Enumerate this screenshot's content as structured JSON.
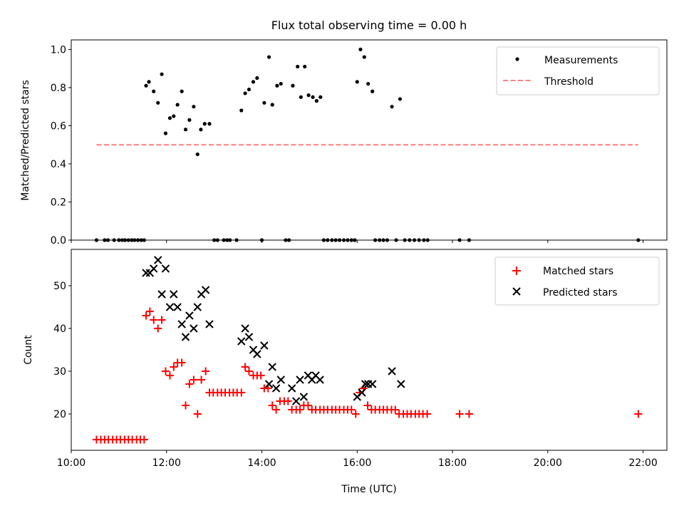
{
  "figure": {
    "title": "Flux total observing time = 0.00 h"
  },
  "chart_data": [
    {
      "type": "scatter",
      "ylabel": "Matched/Predicted stars",
      "xlim": [
        10.0,
        22.5
      ],
      "ylim": [
        0.0,
        1.05
      ],
      "yticks": [
        "0.0",
        "0.2",
        "0.4",
        "0.6",
        "0.8",
        "1.0"
      ],
      "ytick_values": [
        0.0,
        0.2,
        0.4,
        0.6,
        0.8,
        1.0
      ],
      "grid": false,
      "legend_position": "top-right",
      "series": [
        {
          "name": "Measurements",
          "color": "#000000",
          "marker": "dot",
          "points": [
            [
              10.53,
              0
            ],
            [
              10.7,
              0
            ],
            [
              10.77,
              0
            ],
            [
              10.9,
              0
            ],
            [
              11.0,
              0
            ],
            [
              11.07,
              0
            ],
            [
              11.13,
              0
            ],
            [
              11.2,
              0
            ],
            [
              11.27,
              0
            ],
            [
              11.33,
              0
            ],
            [
              11.4,
              0
            ],
            [
              11.47,
              0
            ],
            [
              11.53,
              0
            ],
            [
              11.57,
              0.81
            ],
            [
              11.63,
              0.83
            ],
            [
              11.73,
              0.78
            ],
            [
              11.82,
              0.72
            ],
            [
              11.9,
              0.87
            ],
            [
              11.98,
              0.56
            ],
            [
              12.07,
              0.64
            ],
            [
              12.15,
              0.65
            ],
            [
              12.23,
              0.71
            ],
            [
              12.32,
              0.78
            ],
            [
              12.4,
              0.58
            ],
            [
              12.48,
              0.63
            ],
            [
              12.57,
              0.7
            ],
            [
              12.65,
              0.45
            ],
            [
              12.72,
              0.58
            ],
            [
              12.8,
              0.61
            ],
            [
              12.9,
              0.61
            ],
            [
              13.0,
              0
            ],
            [
              13.07,
              0
            ],
            [
              13.2,
              0
            ],
            [
              13.27,
              0
            ],
            [
              13.33,
              0
            ],
            [
              13.47,
              0
            ],
            [
              13.57,
              0.68
            ],
            [
              13.65,
              0.77
            ],
            [
              13.73,
              0.79
            ],
            [
              13.82,
              0.83
            ],
            [
              13.9,
              0.85
            ],
            [
              14.0,
              0
            ],
            [
              14.05,
              0.72
            ],
            [
              14.15,
              0.96
            ],
            [
              14.22,
              0.71
            ],
            [
              14.32,
              0.81
            ],
            [
              14.4,
              0.82
            ],
            [
              14.5,
              0
            ],
            [
              14.57,
              0
            ],
            [
              14.65,
              0.81
            ],
            [
              14.75,
              0.91
            ],
            [
              14.82,
              0.75
            ],
            [
              14.9,
              0.91
            ],
            [
              14.98,
              0.76
            ],
            [
              15.07,
              0.75
            ],
            [
              15.15,
              0.73
            ],
            [
              15.23,
              0.75
            ],
            [
              15.3,
              0
            ],
            [
              15.38,
              0
            ],
            [
              15.47,
              0
            ],
            [
              15.55,
              0
            ],
            [
              15.63,
              0
            ],
            [
              15.72,
              0
            ],
            [
              15.8,
              0
            ],
            [
              15.88,
              0
            ],
            [
              15.95,
              0
            ],
            [
              16.0,
              0.83
            ],
            [
              16.07,
              1.0
            ],
            [
              16.15,
              0.96
            ],
            [
              16.23,
              0.82
            ],
            [
              16.32,
              0.78
            ],
            [
              16.38,
              0
            ],
            [
              16.47,
              0
            ],
            [
              16.55,
              0
            ],
            [
              16.63,
              0
            ],
            [
              16.73,
              0.7
            ],
            [
              16.82,
              0
            ],
            [
              16.9,
              0.74
            ],
            [
              17.0,
              0
            ],
            [
              17.1,
              0
            ],
            [
              17.2,
              0
            ],
            [
              17.3,
              0
            ],
            [
              17.4,
              0
            ],
            [
              17.48,
              0
            ],
            [
              18.15,
              0
            ],
            [
              18.35,
              0
            ],
            [
              21.9,
              0
            ]
          ]
        },
        {
          "name": "Threshold",
          "color": "#ff7f7f",
          "style": "dashed",
          "points": [
            [
              10.53,
              0.5
            ],
            [
              21.9,
              0.5
            ]
          ]
        }
      ]
    },
    {
      "type": "scatter",
      "xlabel": "Time (UTC)",
      "ylabel": "Count",
      "xlim": [
        10.0,
        22.5
      ],
      "ylim": [
        11.5,
        58.5
      ],
      "yticks": [
        "20",
        "30",
        "40",
        "50"
      ],
      "ytick_values": [
        20,
        30,
        40,
        50
      ],
      "xticks": [
        "10:00",
        "12:00",
        "14:00",
        "16:00",
        "18:00",
        "20:00",
        "22:00"
      ],
      "xtick_values": [
        10,
        12,
        14,
        16,
        18,
        20,
        22
      ],
      "grid": false,
      "legend_position": "top-right",
      "series": [
        {
          "name": "Matched stars",
          "color": "#ff0000",
          "marker": "plus",
          "points": [
            [
              10.53,
              14
            ],
            [
              10.62,
              14
            ],
            [
              10.7,
              14
            ],
            [
              10.78,
              14
            ],
            [
              10.87,
              14
            ],
            [
              10.95,
              14
            ],
            [
              11.03,
              14
            ],
            [
              11.12,
              14
            ],
            [
              11.2,
              14
            ],
            [
              11.28,
              14
            ],
            [
              11.37,
              14
            ],
            [
              11.45,
              14
            ],
            [
              11.53,
              14
            ],
            [
              11.57,
              43
            ],
            [
              11.65,
              44
            ],
            [
              11.73,
              42
            ],
            [
              11.82,
              40
            ],
            [
              11.9,
              42
            ],
            [
              11.98,
              30
            ],
            [
              12.07,
              29
            ],
            [
              12.15,
              31
            ],
            [
              12.23,
              32
            ],
            [
              12.32,
              32
            ],
            [
              12.4,
              22
            ],
            [
              12.48,
              27
            ],
            [
              12.57,
              28
            ],
            [
              12.65,
              20
            ],
            [
              12.73,
              28
            ],
            [
              12.82,
              30
            ],
            [
              12.9,
              25
            ],
            [
              12.98,
              25
            ],
            [
              13.07,
              25
            ],
            [
              13.15,
              25
            ],
            [
              13.23,
              25
            ],
            [
              13.32,
              25
            ],
            [
              13.4,
              25
            ],
            [
              13.48,
              25
            ],
            [
              13.57,
              25
            ],
            [
              13.65,
              31
            ],
            [
              13.73,
              30
            ],
            [
              13.82,
              29
            ],
            [
              13.9,
              29
            ],
            [
              13.98,
              29
            ],
            [
              14.05,
              26
            ],
            [
              14.13,
              26
            ],
            [
              14.22,
              22
            ],
            [
              14.3,
              21
            ],
            [
              14.38,
              23
            ],
            [
              14.47,
              23
            ],
            [
              14.55,
              23
            ],
            [
              14.63,
              21
            ],
            [
              14.72,
              21
            ],
            [
              14.8,
              21
            ],
            [
              14.88,
              22
            ],
            [
              14.97,
              22
            ],
            [
              15.05,
              21
            ],
            [
              15.13,
              21
            ],
            [
              15.22,
              21
            ],
            [
              15.3,
              21
            ],
            [
              15.38,
              21
            ],
            [
              15.47,
              21
            ],
            [
              15.55,
              21
            ],
            [
              15.63,
              21
            ],
            [
              15.72,
              21
            ],
            [
              15.8,
              21
            ],
            [
              15.88,
              21
            ],
            [
              15.97,
              20
            ],
            [
              16.05,
              25
            ],
            [
              16.13,
              26
            ],
            [
              16.22,
              22
            ],
            [
              16.3,
              21
            ],
            [
              16.38,
              21
            ],
            [
              16.47,
              21
            ],
            [
              16.55,
              21
            ],
            [
              16.63,
              21
            ],
            [
              16.72,
              21
            ],
            [
              16.8,
              21
            ],
            [
              16.88,
              20
            ],
            [
              16.97,
              20
            ],
            [
              17.05,
              20
            ],
            [
              17.13,
              20
            ],
            [
              17.22,
              20
            ],
            [
              17.3,
              20
            ],
            [
              17.38,
              20
            ],
            [
              17.47,
              20
            ],
            [
              18.15,
              20
            ],
            [
              18.35,
              20
            ],
            [
              21.9,
              20
            ]
          ]
        },
        {
          "name": "Predicted stars",
          "color": "#000000",
          "marker": "x",
          "points": [
            [
              11.57,
              53
            ],
            [
              11.65,
              53
            ],
            [
              11.73,
              54
            ],
            [
              11.82,
              56
            ],
            [
              11.9,
              48
            ],
            [
              11.98,
              54
            ],
            [
              12.07,
              45
            ],
            [
              12.15,
              48
            ],
            [
              12.23,
              45
            ],
            [
              12.32,
              41
            ],
            [
              12.4,
              38
            ],
            [
              12.48,
              43
            ],
            [
              12.57,
              40
            ],
            [
              12.65,
              45
            ],
            [
              12.73,
              48
            ],
            [
              12.82,
              49
            ],
            [
              12.9,
              41
            ],
            [
              13.57,
              37
            ],
            [
              13.65,
              40
            ],
            [
              13.73,
              38
            ],
            [
              13.82,
              35
            ],
            [
              13.9,
              34
            ],
            [
              14.05,
              36
            ],
            [
              14.15,
              27
            ],
            [
              14.22,
              31
            ],
            [
              14.3,
              26
            ],
            [
              14.4,
              28
            ],
            [
              14.63,
              26
            ],
            [
              14.72,
              23
            ],
            [
              14.8,
              28
            ],
            [
              14.88,
              24
            ],
            [
              14.97,
              29
            ],
            [
              15.05,
              28
            ],
            [
              15.13,
              29
            ],
            [
              15.22,
              28
            ],
            [
              16.0,
              24
            ],
            [
              16.1,
              25
            ],
            [
              16.17,
              27
            ],
            [
              16.23,
              27
            ],
            [
              16.32,
              27
            ],
            [
              16.73,
              30
            ],
            [
              16.92,
              27
            ]
          ]
        }
      ]
    }
  ]
}
